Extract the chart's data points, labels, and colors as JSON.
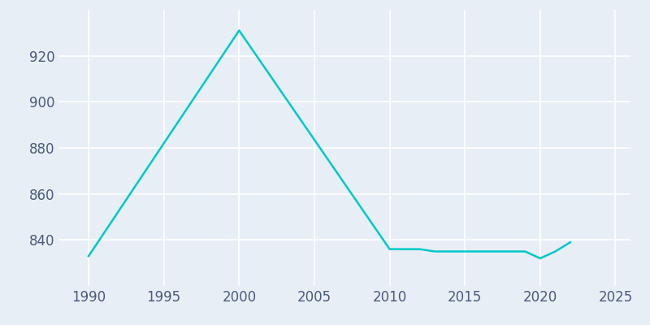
{
  "years": [
    1990,
    2000,
    2010,
    2011,
    2012,
    2013,
    2014,
    2015,
    2016,
    2017,
    2018,
    2019,
    2020,
    2021,
    2022
  ],
  "population": [
    833,
    931,
    836,
    836,
    836,
    835,
    835,
    835,
    835,
    835,
    835,
    835,
    832,
    835,
    839
  ],
  "line_color": "#00c8c8",
  "line_width": 1.8,
  "bg_color": "#e8eef6",
  "plot_bg_color": "#e8eef6",
  "grid_color": "#ffffff",
  "tick_color": "#4a5a7a",
  "tick_fontsize": 12,
  "xlim": [
    1988,
    2026
  ],
  "ylim": [
    820,
    940
  ],
  "yticks": [
    840,
    860,
    880,
    900,
    920
  ],
  "xticks": [
    1990,
    1995,
    2000,
    2005,
    2010,
    2015,
    2020,
    2025
  ]
}
